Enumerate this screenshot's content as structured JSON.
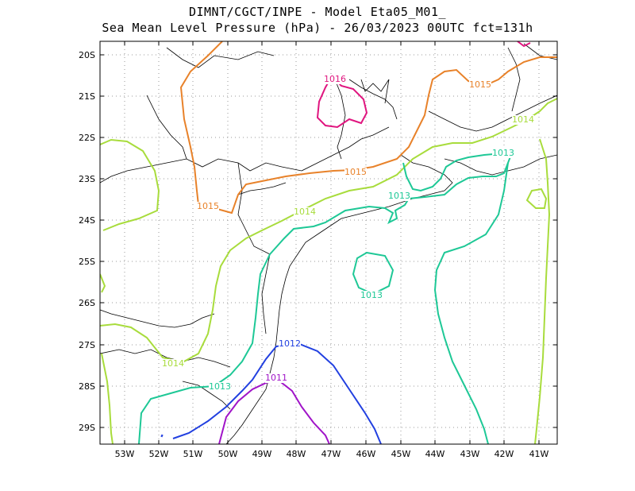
{
  "title_line1": "DIMNT/CGCT/INPE -  Model Eta05_M01_",
  "title_line2": "Sea Mean Level Pressure (hPa) - 26/03/2023 00UTC fct=131h",
  "axes": {
    "lon_labels": [
      "53W",
      "52W",
      "51W",
      "50W",
      "49W",
      "48W",
      "47W",
      "46W",
      "45W",
      "44W",
      "43W",
      "42W",
      "41W"
    ],
    "lat_labels": [
      "20S",
      "21S",
      "22S",
      "23S",
      "24S",
      "25S",
      "26S",
      "27S",
      "28S",
      "29S"
    ]
  },
  "contours": [
    {
      "value": "1016",
      "color": "#e0157f"
    },
    {
      "value": "1015",
      "color": "#e8822a"
    },
    {
      "value": "1014",
      "color": "#a8dc3c"
    },
    {
      "value": "1013",
      "color": "#1ec896"
    },
    {
      "value": "1012",
      "color": "#2240e0"
    },
    {
      "value": "1011",
      "color": "#a014c8"
    }
  ],
  "contour_labels": [
    {
      "text": "1016",
      "color": "#e0157f"
    },
    {
      "text": "1015",
      "color": "#e8822a"
    },
    {
      "text": "1015",
      "color": "#e8822a"
    },
    {
      "text": "1015",
      "color": "#e8822a"
    },
    {
      "text": "1014",
      "color": "#a8dc3c"
    },
    {
      "text": "1014",
      "color": "#a8dc3c"
    },
    {
      "text": "1014",
      "color": "#a8dc3c"
    },
    {
      "text": "1013",
      "color": "#1ec896"
    },
    {
      "text": "1013",
      "color": "#1ec896"
    },
    {
      "text": "1013",
      "color": "#1ec896"
    },
    {
      "text": "1013",
      "color": "#1ec896"
    },
    {
      "text": "1012",
      "color": "#2240e0"
    },
    {
      "text": "1011",
      "color": "#a014c8"
    }
  ]
}
